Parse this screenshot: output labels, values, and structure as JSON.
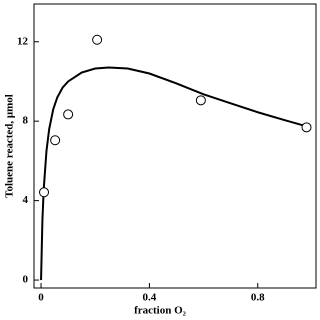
{
  "chart_data": {
    "type": "scatter",
    "xlabel": "fraction O₂",
    "ylabel": "Toluene reacted, μmol",
    "xlim": [
      -0.026,
      1.015
    ],
    "ylim": [
      -0.4,
      13.9
    ],
    "xticks": [
      0,
      0.4,
      0.8
    ],
    "yticks": [
      0,
      4,
      8,
      12
    ],
    "color": "#000000",
    "points": {
      "x": [
        0.011,
        0.052,
        0.1,
        0.207,
        0.59,
        0.98
      ],
      "y": [
        4.42,
        7.04,
        8.34,
        12.1,
        9.05,
        7.69
      ]
    },
    "fit": {
      "x": [
        0,
        0.005,
        0.01,
        0.02,
        0.03,
        0.045,
        0.06,
        0.08,
        0.1,
        0.15,
        0.2,
        0.25,
        0.32,
        0.4,
        0.5,
        0.6,
        0.7,
        0.8,
        0.9,
        0.98
      ],
      "y": [
        0,
        3.0,
        4.6,
        6.5,
        7.6,
        8.6,
        9.2,
        9.7,
        10.0,
        10.45,
        10.65,
        10.7,
        10.65,
        10.4,
        9.9,
        9.35,
        8.9,
        8.45,
        8.05,
        7.74
      ]
    }
  }
}
